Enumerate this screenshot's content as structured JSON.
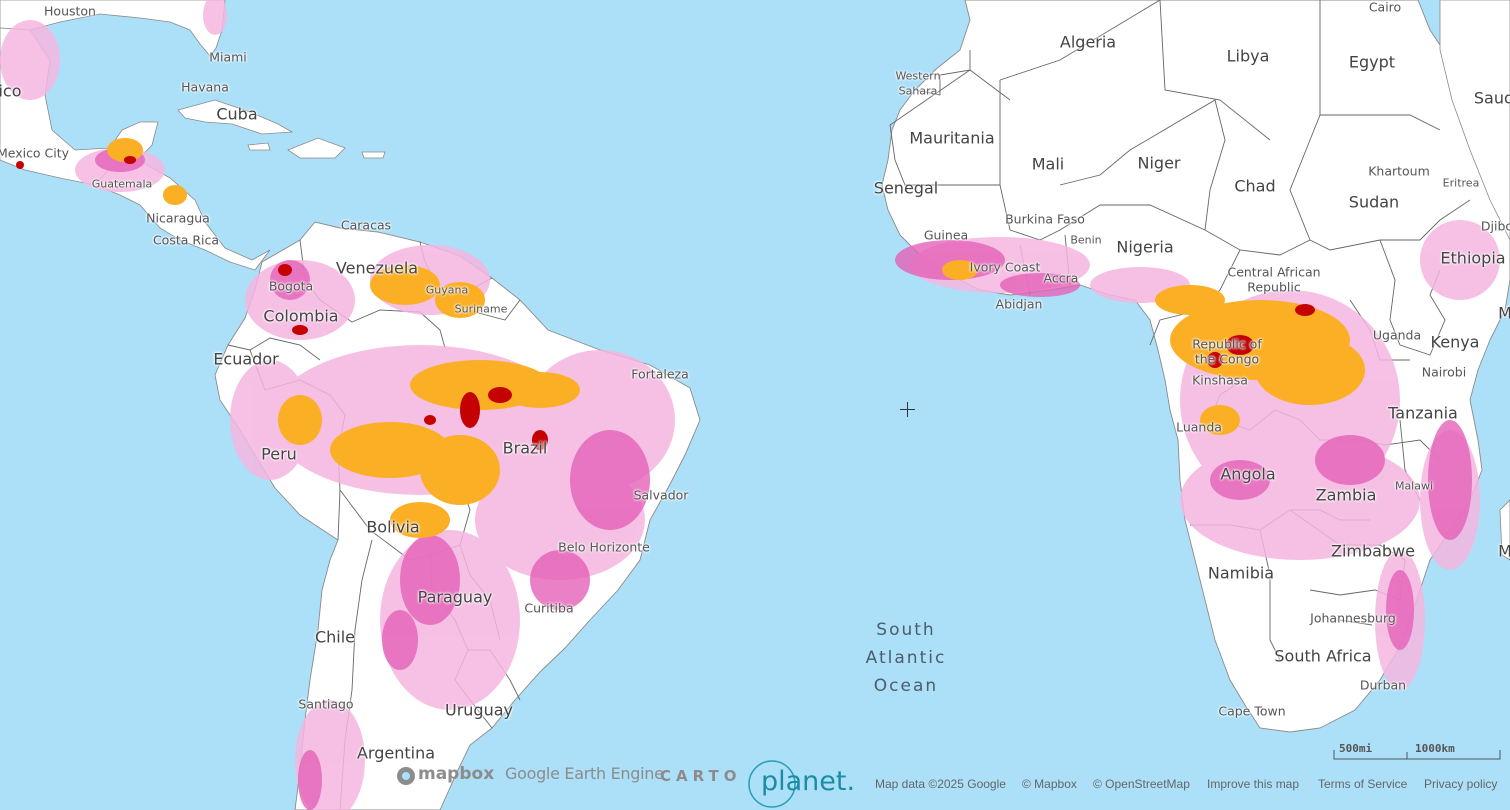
{
  "map": {
    "countries": [
      "Algeria",
      "Libya",
      "Egypt",
      "Western Sahara",
      "Mauritania",
      "Mali",
      "Niger",
      "Chad",
      "Sudan",
      "Senegal",
      "Guinea",
      "Burkina Faso",
      "Benin",
      "Nigeria",
      "Ivory Coast",
      "Central African Republic",
      "Eritrea",
      "Ethiopia",
      "Uganda",
      "Kenya",
      "Republic of the Congo",
      "Tanzania",
      "Angola",
      "Zambia",
      "Malawi",
      "Zimbabwe",
      "Namibia",
      "South Africa",
      "Cuba",
      "Guatemala",
      "Nicaragua",
      "Costa Rica",
      "Venezuela",
      "Colombia",
      "Guyana",
      "Suriname",
      "Ecuador",
      "Peru",
      "Brazil",
      "Bolivia",
      "Paraguay",
      "Chile",
      "Uruguay",
      "Argentina"
    ],
    "cities": [
      "Houston",
      "Miami",
      "Havana",
      "Mexico City",
      "Caracas",
      "Bogota",
      "Fortaleza",
      "Salvador",
      "Belo Horizonte",
      "Curitiba",
      "Santiago",
      "Cairo",
      "Khartoum",
      "Accra",
      "Abidjan",
      "Kinshasa",
      "Luanda",
      "Nairobi",
      "Johannesburg",
      "Durban",
      "Cape Town"
    ],
    "partial_labels": [
      "ico",
      "Saud",
      "Djibo",
      "M",
      "M"
    ],
    "ocean": "South Atlantic Ocean"
  },
  "labels": {
    "houston": "Houston",
    "miami": "Miami",
    "havana": "Havana",
    "cuba": "Cuba",
    "ico": "ico",
    "mexico_city": "Mexico City",
    "guatemala": "Guatemala",
    "nicaragua": "Nicaragua",
    "costa_rica": "Costa Rica",
    "caracas": "Caracas",
    "venezuela": "Venezuela",
    "guyana": "Guyana",
    "suriname": "Suriname",
    "bogota": "Bogota",
    "colombia": "Colombia",
    "ecuador": "Ecuador",
    "fortaleza": "Fortaleza",
    "peru": "Peru",
    "brazil": "Brazil",
    "salvador": "Salvador",
    "bolivia": "Bolivia",
    "belo_horizonte": "Belo Horizonte",
    "paraguay": "Paraguay",
    "curitiba": "Curitiba",
    "chile": "Chile",
    "santiago": "Santiago",
    "uruguay": "Uruguay",
    "argentina": "Argentina",
    "ocean_1": "South",
    "ocean_2": "Atlantic",
    "ocean_3": "Ocean",
    "algeria": "Algeria",
    "libya": "Libya",
    "egypt": "Egypt",
    "cairo": "Cairo",
    "saud": "Saud",
    "western_sahara_1": "Western",
    "western_sahara_2": "Sahara",
    "mauritania": "Mauritania",
    "mali": "Mali",
    "niger": "Niger",
    "chad": "Chad",
    "khartoum": "Khartoum",
    "sudan": "Sudan",
    "eritrea": "Eritrea",
    "djibo": "Djibo",
    "senegal": "Senegal",
    "guinea": "Guinea",
    "burkina_faso": "Burkina Faso",
    "benin": "Benin",
    "nigeria": "Nigeria",
    "ivory_coast": "Ivory Coast",
    "accra": "Accra",
    "abidjan": "Abidjan",
    "car_1": "Central African",
    "car_2": "Republic",
    "ethiopia": "Ethiopia",
    "m1": "M",
    "uganda": "Uganda",
    "kenya": "Kenya",
    "roc_1": "Republic of",
    "roc_2": "the Congo",
    "kinshasa": "Kinshasa",
    "nairobi": "Nairobi",
    "luanda": "Luanda",
    "tanzania": "Tanzania",
    "angola": "Angola",
    "zambia": "Zambia",
    "malawi": "Malawi",
    "zimbabwe": "Zimbabwe",
    "m2": "M",
    "namibia": "Namibia",
    "johannesburg": "Johannesburg",
    "south_africa": "South Africa",
    "durban": "Durban",
    "cape_town": "Cape Town"
  },
  "scale": {
    "miles": "500mi",
    "km": "1000km"
  },
  "logos": {
    "mapbox": "mapbox",
    "google_earth_engine": "Google Earth Engine",
    "carto": "CARTO",
    "planet": "planet."
  },
  "attribution": {
    "map_data": "Map data ©2025 Google",
    "mapbox": "© Mapbox",
    "osm": "© OpenStreetMap",
    "improve": "Improve this map",
    "terms": "Terms of Service",
    "privacy": "Privacy policy"
  },
  "colors": {
    "water": "#ace0f9",
    "land": "#ffffff",
    "border": "#666666",
    "loss_light": "#f4b6e0",
    "loss_medium": "#e561b8",
    "alert_orange": "#fbaf25",
    "alert_red": "#c40000"
  }
}
